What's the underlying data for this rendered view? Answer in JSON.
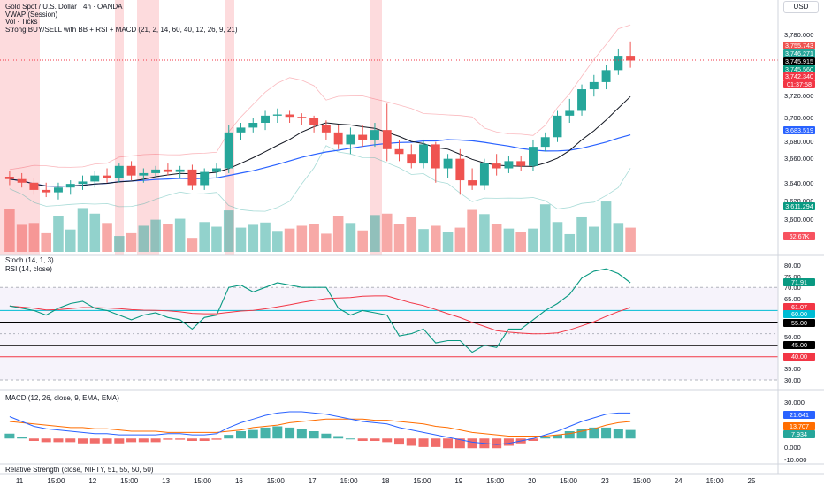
{
  "legend": {
    "symbol": "Gold Spot / U.S. Dollar · 4h · OANDA",
    "vwap": "VWAP (Session)",
    "vol": "Vol · Ticks",
    "strategy": "Strong BUY/SELL with BB + RSI + MACD (21, 2, 14, 60, 40, 12, 26, 9, 21)"
  },
  "currency": "USD",
  "panes": {
    "stoch": "Stoch (14, 1, 3)",
    "rsi": "RSI (14, close)",
    "macd": "MACD (12, 26, close, 9, EMA, EMA)",
    "rs": "Relative Strength (close, NIFTY, 51, 55, 50, 50)"
  },
  "price_axis": [
    "3,780.000",
    "3,760.000",
    "3,720.000",
    "3,700.000",
    "3,680.000",
    "3,660.000",
    "3,640.000",
    "3,620.000",
    "3,600.000"
  ],
  "price_tags": [
    {
      "text": "3,755.743",
      "color": "#ef5350"
    },
    {
      "text": "3,746.271",
      "color": "#26a69a"
    },
    {
      "text": "3,745.915",
      "color": "#000000"
    },
    {
      "text": "3,745.560",
      "color": "#089981"
    },
    {
      "text": "3,742.340",
      "color": "#f23645"
    },
    {
      "text": "01:37:58",
      "color": "#f23645"
    },
    {
      "text": "3,683.519",
      "color": "#2962ff"
    },
    {
      "text": "3,611.294",
      "color": "#089981"
    },
    {
      "text": "62.67K",
      "color": "#f7525f"
    }
  ],
  "rsi_axis": [
    "80.00",
    "75.00",
    "70.00",
    "65.00",
    "50.00",
    "35.00",
    "30.00"
  ],
  "rsi_tags": [
    {
      "text": "71.91",
      "color": "#089981"
    },
    {
      "text": "61.07",
      "color": "#f23645"
    },
    {
      "text": "60.00",
      "color": "#00bcd4"
    },
    {
      "text": "55.00",
      "color": "#000000"
    },
    {
      "text": "45.00",
      "color": "#000000"
    },
    {
      "text": "40.00",
      "color": "#f23645"
    }
  ],
  "macd_axis": [
    "30.000",
    "0.000",
    "-10.000"
  ],
  "macd_tags": [
    {
      "text": "21.641",
      "color": "#2962ff"
    },
    {
      "text": "13.707",
      "color": "#ff6d00"
    },
    {
      "text": "7.934",
      "color": "#26a69a"
    }
  ],
  "time_axis": [
    "11",
    "15:00",
    "12",
    "15:00",
    "13",
    "15:00",
    "16",
    "15:00",
    "17",
    "15:00",
    "18",
    "15:00",
    "19",
    "15:00",
    "20",
    "15:00",
    "23",
    "15:00",
    "24",
    "15:00",
    "25"
  ],
  "colors": {
    "up": "#26a69a",
    "down": "#ef5350",
    "vwap": "#2962ff",
    "rsi": "#089981",
    "rsi_ma": "#f23645",
    "macd": "#2962ff",
    "signal": "#ff6d00"
  },
  "chart_data": {
    "type": "candlestick",
    "bars": [
      [
        3645,
        3650,
        3638,
        3643
      ],
      [
        3643,
        3648,
        3636,
        3640
      ],
      [
        3640,
        3644,
        3630,
        3634
      ],
      [
        3634,
        3640,
        3628,
        3632
      ],
      [
        3632,
        3640,
        3626,
        3636
      ],
      [
        3636,
        3642,
        3630,
        3639
      ],
      [
        3639,
        3646,
        3634,
        3641
      ],
      [
        3641,
        3650,
        3636,
        3646
      ],
      [
        3646,
        3652,
        3640,
        3644
      ],
      [
        3644,
        3656,
        3640,
        3654
      ],
      [
        3654,
        3658,
        3642,
        3646
      ],
      [
        3646,
        3652,
        3640,
        3648
      ],
      [
        3648,
        3654,
        3644,
        3651
      ],
      [
        3651,
        3656,
        3646,
        3649
      ],
      [
        3649,
        3654,
        3644,
        3651
      ],
      [
        3651,
        3655,
        3634,
        3638
      ],
      [
        3638,
        3652,
        3634,
        3649
      ],
      [
        3649,
        3656,
        3644,
        3652
      ],
      [
        3652,
        3688,
        3648,
        3682
      ],
      [
        3682,
        3690,
        3676,
        3686
      ],
      [
        3686,
        3694,
        3682,
        3690
      ],
      [
        3690,
        3700,
        3684,
        3696
      ],
      [
        3696,
        3702,
        3690,
        3697
      ],
      [
        3697,
        3700,
        3690,
        3695
      ],
      [
        3695,
        3698,
        3688,
        3694
      ],
      [
        3694,
        3696,
        3682,
        3688
      ],
      [
        3688,
        3692,
        3676,
        3682
      ],
      [
        3682,
        3688,
        3668,
        3672
      ],
      [
        3672,
        3686,
        3664,
        3680
      ],
      [
        3680,
        3688,
        3670,
        3676
      ],
      [
        3676,
        3690,
        3670,
        3684
      ],
      [
        3684,
        3706,
        3658,
        3668
      ],
      [
        3668,
        3676,
        3658,
        3664
      ],
      [
        3664,
        3672,
        3652,
        3656
      ],
      [
        3656,
        3676,
        3652,
        3672
      ],
      [
        3672,
        3674,
        3640,
        3652
      ],
      [
        3652,
        3664,
        3644,
        3660
      ],
      [
        3660,
        3668,
        3630,
        3642
      ],
      [
        3642,
        3652,
        3634,
        3638
      ],
      [
        3638,
        3660,
        3634,
        3656
      ],
      [
        3656,
        3664,
        3646,
        3652
      ],
      [
        3652,
        3662,
        3648,
        3658
      ],
      [
        3658,
        3662,
        3650,
        3654
      ],
      [
        3654,
        3676,
        3650,
        3670
      ],
      [
        3670,
        3682,
        3666,
        3678
      ],
      [
        3678,
        3700,
        3674,
        3696
      ],
      [
        3696,
        3710,
        3690,
        3700
      ],
      [
        3700,
        3722,
        3696,
        3718
      ],
      [
        3718,
        3730,
        3712,
        3724
      ],
      [
        3724,
        3738,
        3718,
        3734
      ],
      [
        3734,
        3752,
        3730,
        3746
      ],
      [
        3746,
        3758,
        3736,
        3742
      ]
    ],
    "volume": [
      92,
      58,
      62,
      40,
      76,
      48,
      94,
      82,
      62,
      34,
      40,
      56,
      69,
      60,
      71,
      30,
      64,
      54,
      89,
      52,
      58,
      63,
      45,
      50,
      56,
      60,
      39,
      76,
      62,
      46,
      79,
      82,
      60,
      74,
      49,
      56,
      42,
      52,
      90,
      81,
      60,
      50,
      43,
      50,
      102,
      64,
      38,
      74,
      54,
      108,
      62,
      52
    ],
    "rsi": [
      62,
      61,
      60,
      58,
      61,
      63,
      64,
      61,
      60,
      58,
      56,
      58,
      59,
      57,
      56,
      52,
      57,
      58,
      70,
      71,
      68,
      70,
      72,
      71,
      70,
      70,
      70,
      61,
      58,
      60,
      59,
      58,
      49,
      50,
      52,
      46,
      47,
      47,
      42,
      45,
      44,
      52,
      52,
      56,
      60,
      63,
      67,
      74,
      77,
      78,
      76,
      72
    ],
    "macd": [
      18,
      14,
      10,
      8,
      7,
      6,
      5,
      4,
      4,
      3,
      3,
      3,
      3,
      4,
      4,
      3,
      3,
      4,
      9,
      13,
      16,
      19,
      21,
      22,
      22,
      21,
      20,
      18,
      16,
      14,
      13,
      12,
      9,
      7,
      5,
      3,
      1,
      -1,
      -3,
      -4,
      -5,
      -4,
      -2,
      0,
      3,
      6,
      10,
      14,
      17,
      20,
      21,
      21
    ],
    "signal": [
      14,
      13,
      12,
      11,
      10,
      9,
      9,
      8,
      8,
      7,
      6,
      6,
      6,
      5,
      5,
      5,
      5,
      5,
      6,
      7,
      9,
      10,
      11,
      13,
      14,
      15,
      16,
      16,
      16,
      16,
      15,
      15,
      14,
      13,
      12,
      10,
      9,
      7,
      5,
      4,
      3,
      2,
      2,
      2,
      2,
      3,
      4,
      6,
      8,
      11,
      13,
      14
    ]
  }
}
